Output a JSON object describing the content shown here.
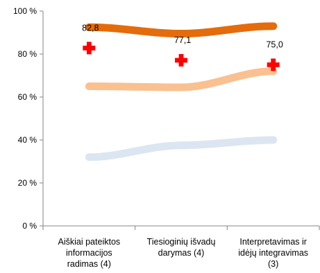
{
  "chart_data": {
    "type": "line",
    "categories": [
      [
        "Aiškiai pateiktos",
        "informacijos",
        "radimas (4)"
      ],
      [
        "Tiesioginių išvadų",
        "darymas (4)"
      ],
      [
        "Interpretavimas ir",
        "idėjų integravimas",
        "(3)"
      ]
    ],
    "yticks": [
      "0 %",
      "20 %",
      "40 %",
      "60 %",
      "80 %",
      "100 %"
    ],
    "ylim": [
      0,
      100
    ],
    "grid": false,
    "legend": "none",
    "series": [
      {
        "values": [
          92.5,
          89.5,
          93.0
        ],
        "color": "#E46C0A"
      },
      {
        "values": [
          65.0,
          64.5,
          72.0
        ],
        "color": "#FAC090"
      },
      {
        "values": [
          32.0,
          37.5,
          40.0
        ],
        "color": "#DCE6F2"
      }
    ],
    "markers": {
      "symbol": "cross",
      "color": "#FF0000",
      "values": [
        82.8,
        77.1,
        75.0
      ],
      "labels": [
        "82,8",
        "77,1",
        "75,0"
      ]
    }
  }
}
